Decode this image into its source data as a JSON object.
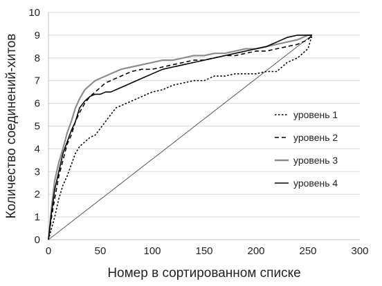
{
  "chart_data": {
    "type": "line",
    "title": "",
    "xlabel": "Номер в сортированном списке",
    "ylabel": "Количество соединений-хитов",
    "xlim": [
      0,
      300
    ],
    "ylim": [
      0,
      10
    ],
    "x_ticks": [
      "0",
      "50",
      "100",
      "150",
      "200",
      "250",
      "300"
    ],
    "y_ticks": [
      "0",
      "1",
      "2",
      "3",
      "4",
      "5",
      "6",
      "7",
      "8",
      "9",
      "10"
    ],
    "grid": "horizontal",
    "legend_position": "right",
    "reference_line": {
      "x": [
        0,
        254
      ],
      "y": [
        0,
        9
      ]
    },
    "series": [
      {
        "name": "уровень 1",
        "style": "dotted",
        "color": "#000000",
        "x": [
          0,
          3,
          6,
          10,
          14,
          18,
          22,
          26,
          30,
          35,
          40,
          45,
          50,
          55,
          60,
          65,
          70,
          75,
          80,
          85,
          90,
          95,
          100,
          110,
          120,
          130,
          140,
          150,
          160,
          170,
          180,
          190,
          200,
          210,
          220,
          225,
          230,
          235,
          240,
          245,
          250,
          254
        ],
        "y": [
          0,
          0.5,
          1.0,
          1.8,
          2.4,
          2.8,
          3.3,
          3.8,
          4.1,
          4.3,
          4.5,
          4.6,
          4.9,
          5.2,
          5.5,
          5.8,
          5.9,
          6.0,
          6.1,
          6.2,
          6.3,
          6.4,
          6.5,
          6.6,
          6.8,
          6.9,
          7.0,
          7.0,
          7.2,
          7.2,
          7.3,
          7.3,
          7.3,
          7.4,
          7.4,
          7.6,
          7.8,
          7.9,
          8.0,
          8.2,
          8.4,
          9.0
        ]
      },
      {
        "name": "уровень 2",
        "style": "dashed",
        "color": "#000000",
        "x": [
          0,
          3,
          6,
          10,
          14,
          18,
          22,
          26,
          30,
          35,
          40,
          45,
          50,
          55,
          60,
          65,
          70,
          80,
          90,
          100,
          110,
          120,
          130,
          140,
          150,
          160,
          170,
          180,
          190,
          200,
          210,
          220,
          230,
          240,
          250,
          254
        ],
        "y": [
          0,
          1.0,
          1.8,
          2.8,
          3.5,
          4.2,
          4.6,
          5.2,
          5.6,
          6.0,
          6.3,
          6.5,
          6.7,
          6.9,
          7.0,
          7.1,
          7.2,
          7.4,
          7.5,
          7.5,
          7.6,
          7.7,
          7.8,
          7.9,
          7.9,
          8.0,
          8.1,
          8.1,
          8.2,
          8.3,
          8.3,
          8.4,
          8.5,
          8.6,
          8.8,
          9.0
        ]
      },
      {
        "name": "уровень 3",
        "style": "solid",
        "color": "#8c8c8c",
        "x": [
          0,
          3,
          6,
          10,
          14,
          18,
          22,
          26,
          30,
          35,
          40,
          45,
          50,
          55,
          60,
          65,
          70,
          80,
          90,
          100,
          110,
          120,
          130,
          140,
          150,
          160,
          170,
          180,
          190,
          200,
          210,
          220,
          230,
          240,
          245,
          250,
          254
        ],
        "y": [
          0,
          1.4,
          2.6,
          3.4,
          4.0,
          4.7,
          5.2,
          5.8,
          6.2,
          6.6,
          6.8,
          7.0,
          7.1,
          7.2,
          7.3,
          7.4,
          7.5,
          7.6,
          7.7,
          7.8,
          7.9,
          7.9,
          8.0,
          8.1,
          8.1,
          8.2,
          8.2,
          8.3,
          8.4,
          8.4,
          8.5,
          8.6,
          8.7,
          8.8,
          8.9,
          9.0,
          9.0
        ]
      },
      {
        "name": "уровень 4",
        "style": "solid",
        "color": "#000000",
        "x": [
          0,
          3,
          6,
          10,
          14,
          18,
          22,
          26,
          30,
          35,
          40,
          45,
          50,
          55,
          60,
          65,
          70,
          80,
          90,
          100,
          110,
          120,
          130,
          140,
          150,
          160,
          170,
          180,
          190,
          200,
          210,
          220,
          230,
          240,
          245,
          250,
          254
        ],
        "y": [
          0,
          1.2,
          2.2,
          3.0,
          3.8,
          4.3,
          4.8,
          5.2,
          5.8,
          6.1,
          6.3,
          6.4,
          6.4,
          6.5,
          6.5,
          6.6,
          6.7,
          6.9,
          7.1,
          7.3,
          7.5,
          7.6,
          7.7,
          7.8,
          7.9,
          8.0,
          8.1,
          8.2,
          8.3,
          8.4,
          8.5,
          8.7,
          8.9,
          9.0,
          9.0,
          9.0,
          9.0
        ]
      }
    ]
  }
}
